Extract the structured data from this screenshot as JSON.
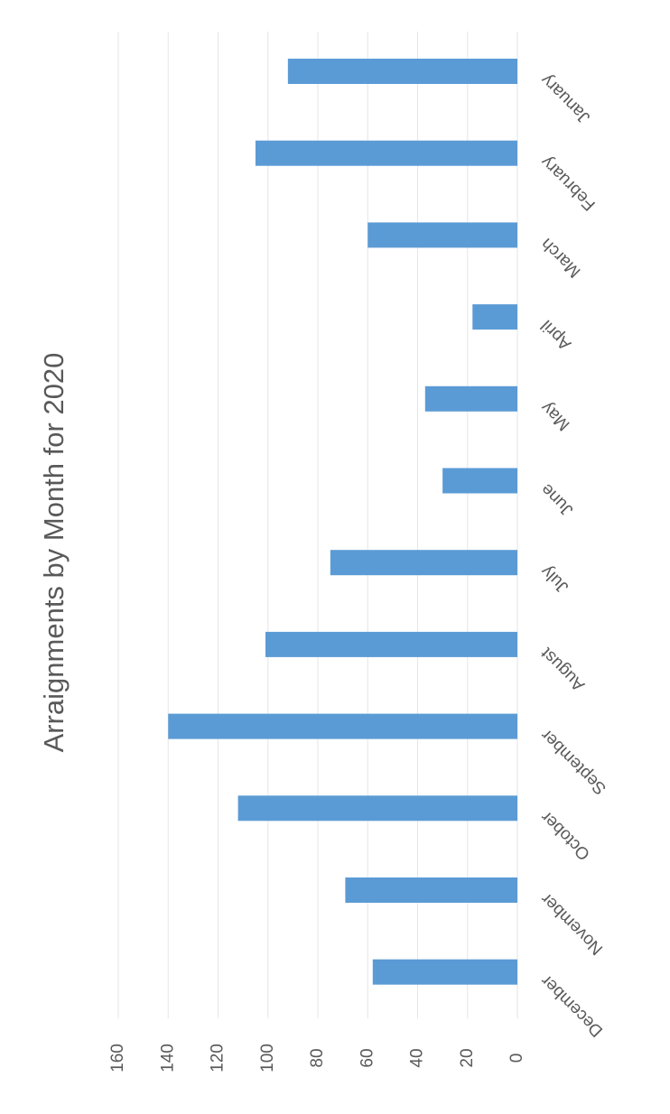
{
  "chart_data": {
    "type": "bar",
    "orientation": "rotated-90-clockwise",
    "title": "Arraignments by Month for 2020",
    "categories": [
      "January",
      "February",
      "March",
      "April",
      "May",
      "June",
      "July",
      "August",
      "September",
      "October",
      "November",
      "December"
    ],
    "values": [
      92,
      105,
      60,
      18,
      37,
      30,
      75,
      101,
      140,
      112,
      69,
      58
    ],
    "ylim": [
      0,
      160
    ],
    "yticks": [
      0,
      20,
      40,
      60,
      80,
      100,
      120,
      140,
      160
    ],
    "ytick_labels": [
      "0",
      "20",
      "40",
      "60",
      "80",
      "100",
      "120",
      "140",
      "160"
    ],
    "xlabel": "",
    "ylabel": "",
    "grid": true,
    "bar_color": "#5b9bd5",
    "grid_color": "#e6e6e6",
    "text_color": "#595959"
  }
}
